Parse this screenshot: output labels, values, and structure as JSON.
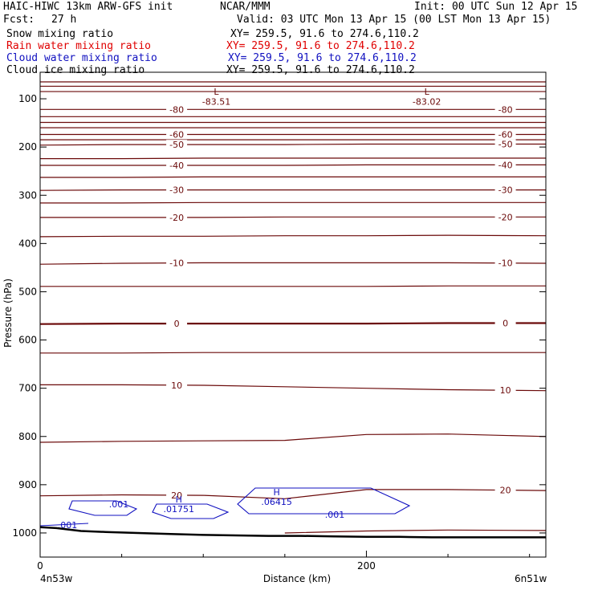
{
  "header": {
    "title": "HAIC-HIWC 13km ARW-GFS init",
    "org": "NCAR/MMM",
    "init": "Init: 00 UTC Sun 12 Apr 15",
    "fcst_label": "Fcst:",
    "fcst_value": "27 h",
    "valid": "Valid: 03 UTC Mon 13 Apr 15 (00 LST Mon 13 Apr 15)",
    "fields": [
      {
        "name": "Snow mixing ratio",
        "xy": "XY= 259.5, 91.6 to 274.6,110.2",
        "color": "#000000"
      },
      {
        "name": "Rain water mixing ratio",
        "xy": "XY= 259.5, 91.6 to 274.6,110.2",
        "color": "#e00000"
      },
      {
        "name": "Cloud water mixing ratio",
        "xy": "XY= 259.5, 91.6 to 274.6,110.2",
        "color": "#1010c0"
      },
      {
        "name": "Cloud ice mixing ratio",
        "xy": "XY= 259.5, 91.6 to 274.6,110.2",
        "color": "#000000"
      }
    ]
  },
  "chart_data": {
    "type": "line",
    "subtype": "vertical cross-section contour plot",
    "xlabel": "Distance (km)",
    "ylabel": "Pressure (hPa)",
    "xlim": [
      0,
      310
    ],
    "ylim": [
      1050,
      45
    ],
    "x_ticks": [
      0,
      200
    ],
    "x_minor_ticks": [
      50,
      100,
      150,
      250,
      300
    ],
    "y_ticks": [
      100,
      200,
      300,
      400,
      500,
      600,
      700,
      800,
      900,
      1000
    ],
    "x_endpoint_left": "4n53w",
    "x_endpoint_right": "6n51w",
    "colors": {
      "temperature": "#6b0a0a",
      "cloud_water": "#1010c0",
      "terrain": "#000000"
    },
    "temperature_contours": {
      "interval": 5,
      "isotherms": [
        {
          "value": -80,
          "label": "-80",
          "pressures": [
            122,
            122,
            122,
            122,
            122,
            122,
            122
          ],
          "labeled": true
        },
        {
          "value": -75,
          "pressures": [
            137,
            137,
            137,
            137,
            137,
            137,
            137
          ]
        },
        {
          "value": -70,
          "pressures": [
            149,
            149,
            149,
            149,
            149,
            149,
            149
          ]
        },
        {
          "value": -65,
          "pressures": [
            160,
            160,
            160,
            160,
            160,
            160,
            160
          ]
        },
        {
          "value": -60,
          "label": "-60",
          "pressures": [
            174,
            174,
            174,
            174,
            174,
            174,
            174
          ],
          "labeled": true
        },
        {
          "value": -55,
          "pressures": [
            185,
            185,
            185,
            185,
            185,
            185,
            185
          ]
        },
        {
          "value": -50,
          "label": "-50",
          "pressures": [
            196,
            195,
            195,
            195,
            194,
            194,
            194
          ],
          "labeled": true
        },
        {
          "value": -45,
          "pressures": [
            224,
            224,
            223,
            223,
            223,
            223,
            223
          ]
        },
        {
          "value": -40,
          "label": "-40",
          "pressures": [
            238,
            238,
            238,
            238,
            237,
            237,
            237
          ],
          "labeled": true
        },
        {
          "value": -35,
          "pressures": [
            263,
            263,
            262,
            262,
            262,
            262,
            262
          ]
        },
        {
          "value": -30,
          "label": "-30",
          "pressures": [
            290,
            289,
            289,
            289,
            289,
            289,
            289
          ],
          "labeled": true
        },
        {
          "value": -25,
          "pressures": [
            316,
            316,
            315,
            315,
            315,
            315,
            315
          ]
        },
        {
          "value": -20,
          "label": "-20",
          "pressures": [
            346,
            346,
            346,
            345,
            345,
            345,
            345
          ],
          "labeled": true
        },
        {
          "value": -15,
          "pressures": [
            386,
            385,
            385,
            384,
            384,
            383,
            384
          ]
        },
        {
          "value": -10,
          "label": "-10",
          "pressures": [
            443,
            441,
            440,
            440,
            440,
            440,
            441
          ],
          "labeled": true
        },
        {
          "value": -5,
          "pressures": [
            489,
            489,
            489,
            489,
            489,
            488,
            488
          ]
        },
        {
          "value": 0,
          "label": "0",
          "pressures": [
            567,
            566,
            566,
            566,
            566,
            565,
            565
          ],
          "labeled": true,
          "bold": true
        },
        {
          "value": 5,
          "pressures": [
            627,
            627,
            626,
            626,
            626,
            626,
            626
          ]
        },
        {
          "value": 10,
          "label": "10",
          "pressures": [
            693,
            693,
            694,
            697,
            700,
            703,
            705
          ],
          "labeled": true
        },
        {
          "value": 15,
          "pressures": [
            812,
            810,
            809,
            808,
            796,
            795,
            800
          ]
        },
        {
          "value": 20,
          "label": "20",
          "pressures": [
            923,
            921,
            922,
            929,
            910,
            910,
            912
          ],
          "labeled": true
        },
        {
          "value": 25,
          "pressures": [
            null,
            null,
            null,
            1000,
            996,
            994,
            995
          ]
        }
      ],
      "x": [
        0,
        50,
        100,
        150,
        200,
        250,
        310
      ],
      "extremes": [
        {
          "kind": "L",
          "value": "-83.51",
          "x": 108
        },
        {
          "kind": "L",
          "value": "-83.02",
          "x": 237
        }
      ],
      "upper_levels": [
        65,
        74,
        85
      ]
    },
    "cloud_water_contours": {
      "labeled_values": [
        ".001",
        ".001",
        ".001"
      ],
      "maxima": [
        {
          "kind": "H",
          "value": ".01751",
          "x": 85,
          "p": 950
        },
        {
          "kind": "H",
          "value": ".06415",
          "x": 145,
          "p": 935
        }
      ]
    },
    "terrain_pressure": {
      "x": [
        0,
        10,
        25,
        40,
        60,
        80,
        100,
        120,
        140,
        160,
        180,
        200,
        220,
        240,
        260,
        280,
        310
      ],
      "p": [
        988,
        990,
        996,
        998,
        1000,
        1002,
        1004,
        1005,
        1006,
        1006,
        1007,
        1008,
        1008,
        1009,
        1009,
        1009,
        1009
      ]
    }
  }
}
